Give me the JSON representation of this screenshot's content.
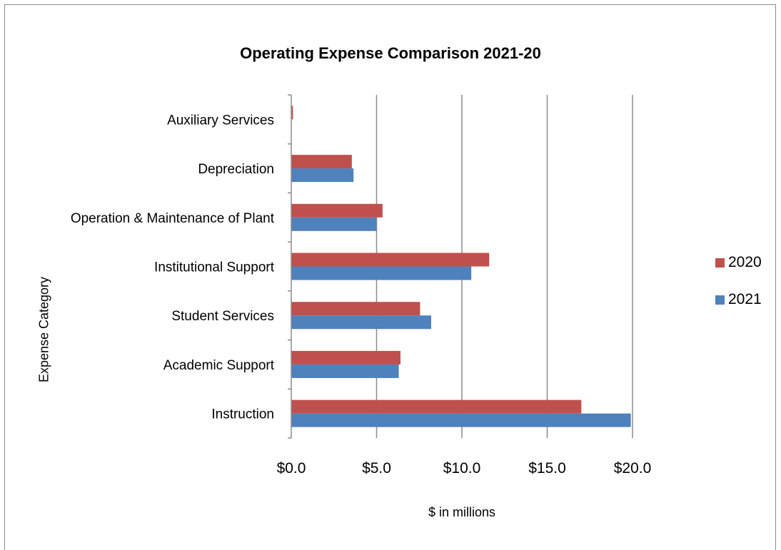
{
  "chart_data": {
    "type": "bar",
    "orientation": "horizontal",
    "title": "Operating Expense Comparison 2021-20",
    "xlabel": "$ in millions",
    "ylabel": "Expense Category",
    "categories": [
      "Instruction",
      "Academic Support",
      "Student Services",
      "Institutional Support",
      "Operation & Maintenance of Plant",
      "Depreciation",
      "Auxiliary Services"
    ],
    "series": [
      {
        "name": "2020",
        "color": "#c0504d",
        "values": [
          17.0,
          6.4,
          7.55,
          11.6,
          5.35,
          3.55,
          0.1
        ]
      },
      {
        "name": "2021",
        "color": "#4f81bd",
        "values": [
          19.9,
          6.3,
          8.2,
          10.55,
          5.0,
          3.65,
          0.0
        ]
      }
    ],
    "xlim": [
      0,
      20
    ],
    "xticks": [
      "$0.0",
      "$5.0",
      "$10.0",
      "$15.0",
      "$20.0"
    ],
    "grid": true,
    "legend_position": "right"
  }
}
